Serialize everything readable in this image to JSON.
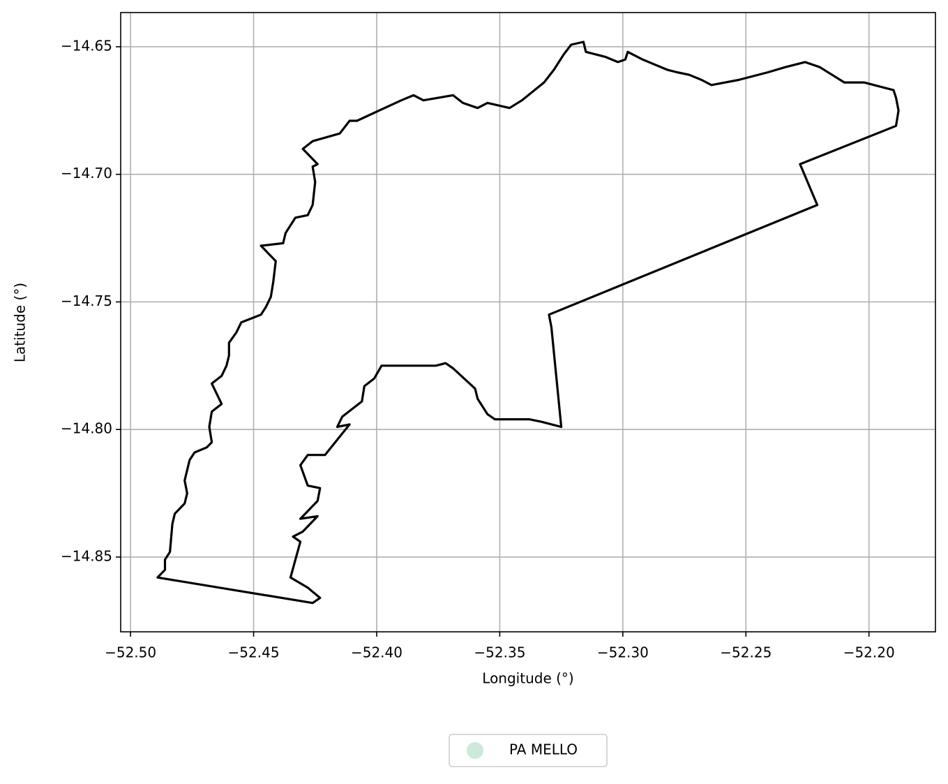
{
  "chart_data": {
    "type": "map",
    "xlabel": "Longitude (°)",
    "ylabel": "Latitude (°)",
    "xlim": [
      -52.504,
      -52.173
    ],
    "ylim": [
      -14.8793,
      -14.6366
    ],
    "xticks": [
      {
        "value": -52.5,
        "label": "−52.50"
      },
      {
        "value": -52.45,
        "label": "−52.45"
      },
      {
        "value": -52.4,
        "label": "−52.40"
      },
      {
        "value": -52.35,
        "label": "−52.35"
      },
      {
        "value": -52.3,
        "label": "−52.30"
      },
      {
        "value": -52.25,
        "label": "−52.25"
      },
      {
        "value": -52.2,
        "label": "−52.20"
      }
    ],
    "yticks": [
      {
        "value": -14.65,
        "label": "−14.65"
      },
      {
        "value": -14.7,
        "label": "−14.70"
      },
      {
        "value": -14.75,
        "label": "−14.75"
      },
      {
        "value": -14.8,
        "label": "−14.80"
      },
      {
        "value": -14.85,
        "label": "−14.85"
      }
    ],
    "grid": true,
    "legend": "lower center",
    "series": [
      {
        "name": "PA MELLO",
        "color": "#cce9dc",
        "edgecolor": "#000000",
        "x": [
          -52.489,
          -52.486,
          -52.486,
          -52.484,
          -52.483,
          -52.482,
          -52.478,
          -52.477,
          -52.478,
          -52.476,
          -52.474,
          -52.469,
          -52.467,
          -52.468,
          -52.467,
          -52.463,
          -52.467,
          -52.463,
          -52.461,
          -52.46,
          -52.46,
          -52.457,
          -52.455,
          -52.447,
          -52.445,
          -52.443,
          -52.442,
          -52.441,
          -52.447,
          -52.438,
          -52.437,
          -52.433,
          -52.428,
          -52.426,
          -52.425,
          -52.426,
          -52.424,
          -52.43,
          -52.426,
          -52.415,
          -52.411,
          -52.408,
          -52.399,
          -52.39,
          -52.385,
          -52.381,
          -52.369,
          -52.365,
          -52.359,
          -52.355,
          -52.346,
          -52.341,
          -52.332,
          -52.328,
          -52.324,
          -52.321,
          -52.316,
          -52.315,
          -52.307,
          -52.302,
          -52.299,
          -52.298,
          -52.292,
          -52.282,
          -52.278,
          -52.273,
          -52.268,
          -52.264,
          -52.253,
          -52.241,
          -52.234,
          -52.23,
          -52.226,
          -52.22,
          -52.21,
          -52.202,
          -52.19,
          -52.189,
          -52.188,
          -52.189,
          -52.228,
          -52.221,
          -52.33,
          -52.329,
          -52.325,
          -52.333,
          -52.338,
          -52.352,
          -52.355,
          -52.359,
          -52.36,
          -52.369,
          -52.372,
          -52.376,
          -52.39,
          -52.398,
          -52.401,
          -52.405,
          -52.406,
          -52.414,
          -52.416,
          -52.411,
          -52.421,
          -52.428,
          -52.431,
          -52.428,
          -52.423,
          -52.424,
          -52.431,
          -52.424,
          -52.43,
          -52.434,
          -52.431,
          -52.433,
          -52.435,
          -52.428,
          -52.423,
          -52.426
        ],
        "y": [
          -14.858,
          -14.855,
          -14.851,
          -14.848,
          -14.837,
          -14.833,
          -14.829,
          -14.825,
          -14.82,
          -14.812,
          -14.809,
          -14.807,
          -14.805,
          -14.799,
          -14.793,
          -14.79,
          -14.782,
          -14.779,
          -14.775,
          -14.771,
          -14.766,
          -14.762,
          -14.758,
          -14.755,
          -14.752,
          -14.748,
          -14.742,
          -14.734,
          -14.728,
          -14.727,
          -14.723,
          -14.717,
          -14.716,
          -14.712,
          -14.703,
          -14.697,
          -14.696,
          -14.69,
          -14.687,
          -14.684,
          -14.679,
          -14.679,
          -14.675,
          -14.671,
          -14.669,
          -14.671,
          -14.669,
          -14.672,
          -14.674,
          -14.672,
          -14.674,
          -14.671,
          -14.664,
          -14.659,
          -14.653,
          -14.6492,
          -14.6481,
          -14.652,
          -14.654,
          -14.656,
          -14.655,
          -14.652,
          -14.655,
          -14.659,
          -14.66,
          -14.661,
          -14.663,
          -14.665,
          -14.663,
          -14.66,
          -14.658,
          -14.657,
          -14.656,
          -14.658,
          -14.664,
          -14.664,
          -14.667,
          -14.67,
          -14.675,
          -14.681,
          -14.696,
          -14.712,
          -14.755,
          -14.76,
          -14.799,
          -14.797,
          -14.796,
          -14.796,
          -14.794,
          -14.788,
          -14.784,
          -14.776,
          -14.774,
          -14.775,
          -14.775,
          -14.775,
          -14.78,
          -14.783,
          -14.789,
          -14.795,
          -14.799,
          -14.798,
          -14.81,
          -14.81,
          -14.814,
          -14.822,
          -14.823,
          -14.828,
          -14.835,
          -14.834,
          -14.84,
          -14.842,
          -14.844,
          -14.851,
          -14.858,
          -14.862,
          -14.866,
          -14.868
        ]
      }
    ]
  }
}
